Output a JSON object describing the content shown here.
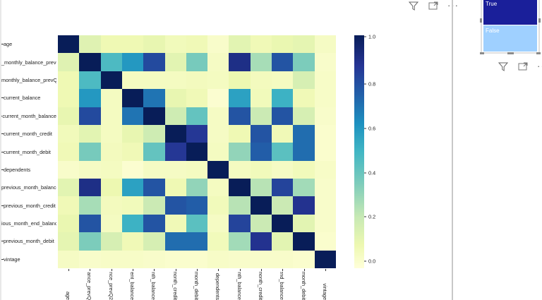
{
  "visual_toolbar": {
    "filter_icon": "filter-icon",
    "focus_icon": "focus-mode-icon",
    "more_label": "···"
  },
  "slicer": {
    "options": [
      {
        "label": "True",
        "color": "#1a1f9a"
      },
      {
        "label": "False",
        "color": "#9fd0ff"
      }
    ],
    "toolbar": {
      "filter_icon": "filter-icon",
      "focus_icon": "focus-mode-icon",
      "more_label": "···"
    }
  },
  "chart_data": {
    "type": "heatmap",
    "title": "",
    "colormap": "YlGnBu",
    "vmin": -0.05,
    "vmax": 1.0,
    "row_labels": [
      "age",
      "_monthly_balance_prevQ",
      "monthly_balance_prevQ2",
      "current_balance",
      "current_month_balance",
      "current_month_credit",
      "current_month_debit",
      "dependents",
      "previous_month_balance",
      "previous_month_credit",
      "ious_month_end_balance",
      "previous_month_debit",
      "vintage"
    ],
    "col_labels": [
      "age",
      "alance_prevQ",
      "lance_prevQ2",
      "rrent_balance",
      "onth_balance",
      "_month_credit",
      "_month_debit",
      "dependents",
      "onth_balance",
      "_month_credit",
      "_end_balance",
      "_month_debit",
      "vintage"
    ],
    "values": [
      [
        1.0,
        0.13,
        0.07,
        0.07,
        0.1,
        0.05,
        0.06,
        0.0,
        0.12,
        0.06,
        0.09,
        0.11,
        0.02
      ],
      [
        0.13,
        1.0,
        0.45,
        0.58,
        0.8,
        0.12,
        0.36,
        0.02,
        0.9,
        0.27,
        0.77,
        0.35,
        0.0
      ],
      [
        0.07,
        0.45,
        1.0,
        0.03,
        0.03,
        0.03,
        0.04,
        0.03,
        0.08,
        0.04,
        0.03,
        0.16,
        0.01
      ],
      [
        0.07,
        0.58,
        0.03,
        1.0,
        0.68,
        0.1,
        0.06,
        -0.02,
        0.55,
        0.05,
        0.49,
        0.06,
        0.01
      ],
      [
        0.1,
        0.8,
        0.03,
        0.68,
        1.0,
        0.19,
        0.4,
        0.02,
        0.77,
        0.2,
        0.77,
        0.16,
        0.0
      ],
      [
        0.05,
        0.12,
        0.03,
        0.1,
        0.19,
        1.0,
        0.86,
        0.02,
        0.07,
        0.77,
        0.06,
        0.7,
        -0.01
      ],
      [
        0.06,
        0.36,
        0.04,
        0.06,
        0.4,
        0.86,
        1.0,
        0.03,
        0.31,
        0.74,
        0.42,
        0.7,
        -0.01
      ],
      [
        0.0,
        0.02,
        0.03,
        -0.02,
        0.02,
        0.02,
        0.03,
        1.0,
        0.03,
        0.05,
        0.02,
        0.05,
        0.01
      ],
      [
        0.12,
        0.9,
        0.08,
        0.55,
        0.77,
        0.07,
        0.31,
        0.03,
        1.0,
        0.24,
        0.82,
        0.28,
        0.0
      ],
      [
        0.06,
        0.27,
        0.04,
        0.05,
        0.2,
        0.77,
        0.74,
        0.05,
        0.24,
        1.0,
        0.2,
        0.88,
        0.0
      ],
      [
        0.09,
        0.77,
        0.03,
        0.49,
        0.77,
        0.06,
        0.42,
        0.02,
        0.82,
        0.2,
        1.0,
        0.12,
        0.0
      ],
      [
        0.11,
        0.35,
        0.16,
        0.06,
        0.16,
        0.7,
        0.7,
        0.05,
        0.28,
        0.88,
        0.12,
        1.0,
        -0.01
      ],
      [
        0.02,
        0.0,
        0.01,
        0.01,
        0.0,
        -0.01,
        -0.01,
        0.01,
        0.0,
        0.0,
        0.0,
        -0.01,
        1.0
      ]
    ],
    "colorbar": {
      "ticks": [
        "0.0",
        "0.2",
        "0.4",
        "0.6",
        "0.8",
        "1.0"
      ],
      "tick_values": [
        0.0,
        0.2,
        0.4,
        0.6,
        0.8,
        1.0
      ]
    },
    "xlabel": "",
    "ylabel": ""
  }
}
